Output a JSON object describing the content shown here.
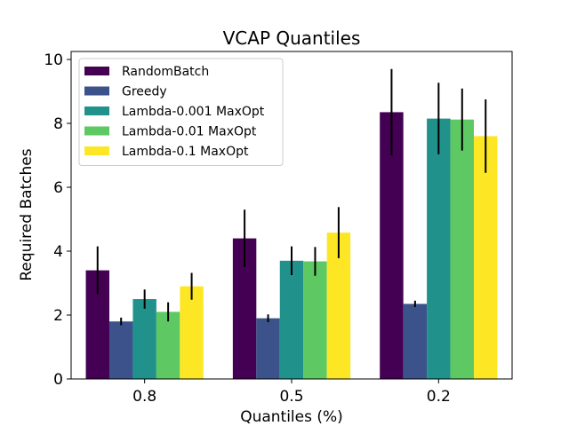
{
  "chart_data": {
    "type": "bar",
    "title": "VCAP Quantiles",
    "xlabel": "Quantiles (%)",
    "ylabel": "Required Batches",
    "categories": [
      "0.8",
      "0.5",
      "0.2"
    ],
    "ylim": [
      0,
      10.25
    ],
    "yticks": [
      0,
      2,
      4,
      6,
      8,
      10
    ],
    "legend_position": "top-left",
    "series": [
      {
        "name": "RandomBatch",
        "color": "#440154",
        "values": [
          3.4,
          4.4,
          8.35
        ],
        "errors": [
          0.75,
          0.9,
          1.35
        ]
      },
      {
        "name": "Greedy",
        "color": "#3b528b",
        "values": [
          1.8,
          1.9,
          2.35
        ],
        "errors": [
          0.12,
          0.12,
          0.1
        ]
      },
      {
        "name": "Lambda-0.001 MaxOpt",
        "color": "#21918c",
        "values": [
          2.5,
          3.7,
          8.15
        ],
        "errors": [
          0.3,
          0.45,
          1.12
        ]
      },
      {
        "name": "Lambda-0.01 MaxOpt",
        "color": "#5ec962",
        "values": [
          2.1,
          3.68,
          8.12
        ],
        "errors": [
          0.3,
          0.45,
          0.97
        ]
      },
      {
        "name": "Lambda-0.1 MaxOpt",
        "color": "#fde725",
        "values": [
          2.9,
          4.58,
          7.6
        ],
        "errors": [
          0.42,
          0.8,
          1.15
        ]
      }
    ]
  }
}
